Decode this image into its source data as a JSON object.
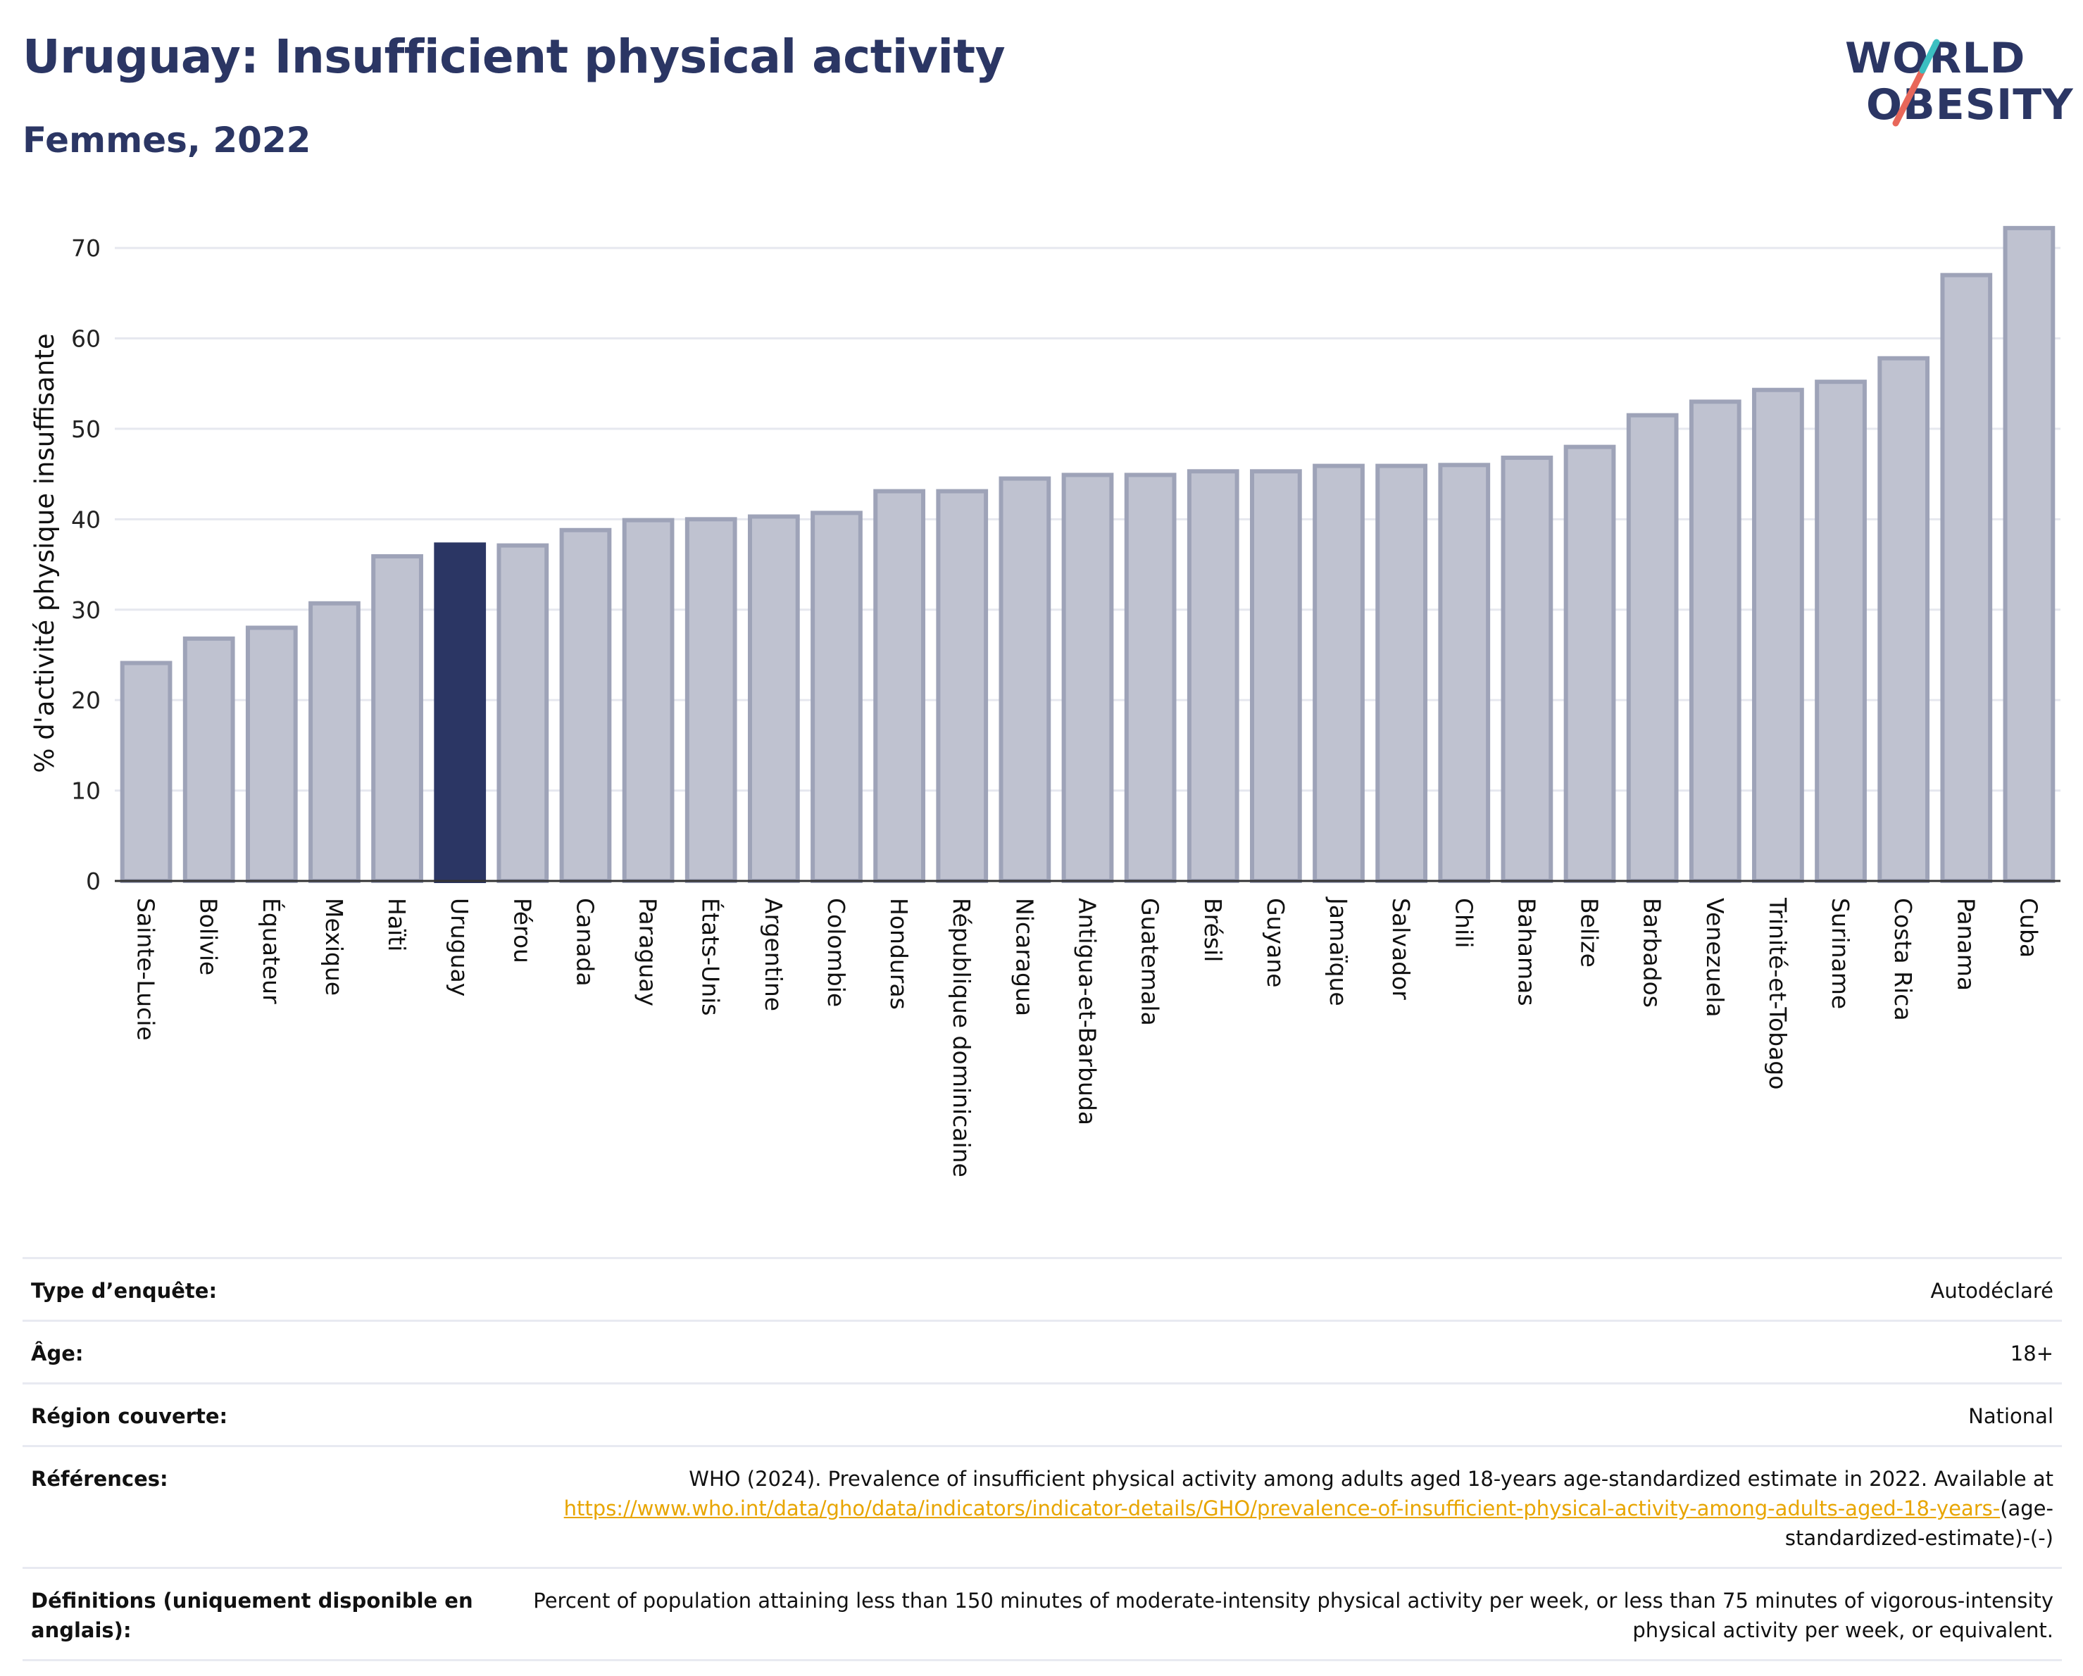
{
  "header": {
    "title": "Uruguay: Insufficient physical activity",
    "subtitle": "Femmes, 2022"
  },
  "logo": {
    "line1": "WORLD",
    "line2": "OBESITY"
  },
  "colors": {
    "bar": "#bfc2d0",
    "bar_stroke": "#9ea3b8",
    "highlight": "#2b3664",
    "grid": "#e6e8ef",
    "axis": "#333333",
    "logo_teal": "#3bbfc1",
    "logo_red": "#e8675a"
  },
  "chart_data": {
    "type": "bar",
    "ylabel": "% d'activité physique insuffisante",
    "ylim": [
      0,
      72.5
    ],
    "yticks": [
      0,
      10,
      20,
      30,
      40,
      50,
      60,
      70
    ],
    "grid": true,
    "highlight": "Uruguay",
    "categories": [
      "Sainte-Lucie",
      "Bolivie",
      "Équateur",
      "Mexique",
      "Haïti",
      "Uruguay",
      "Pérou",
      "Canada",
      "Paraguay",
      "États-Unis",
      "Argentine",
      "Colombie",
      "Honduras",
      "République dominicaine",
      "Nicaragua",
      "Antigua-et-Barbuda",
      "Guatemala",
      "Brésil",
      "Guyane",
      "Jamaïque",
      "Salvador",
      "Chili",
      "Bahamas",
      "Belize",
      "Barbados",
      "Venezuela",
      "Trinité-et-Tobago",
      "Suriname",
      "Costa Rica",
      "Panama",
      "Cuba"
    ],
    "values": [
      24.1,
      26.8,
      28.0,
      30.7,
      35.9,
      37.2,
      37.1,
      38.8,
      39.9,
      40.0,
      40.3,
      40.7,
      43.1,
      43.1,
      44.5,
      44.9,
      44.9,
      45.3,
      45.3,
      45.9,
      45.9,
      46.0,
      46.8,
      48.0,
      51.5,
      53.0,
      54.3,
      55.2,
      57.8,
      67.0,
      72.2
    ]
  },
  "details": [
    {
      "label": "Type d’enquête:",
      "value": "Autodéclaré"
    },
    {
      "label": "Âge:",
      "value": "18+"
    },
    {
      "label": "Région couverte:",
      "value": "National"
    },
    {
      "label": "Références:",
      "value_pre": "WHO (2024). Prevalence of insufficient physical activity among adults aged 18-years age-standardized estimate in 2022. Available at ",
      "link": "https://www.who.int/data/gho/data/indicators/indicator-details/GHO/prevalence-of-insufficient-physical-activity-among-adults-aged-18-years-",
      "value_post": "(age-standardized-estimate)-(-)"
    },
    {
      "label": "Définitions (uniquement disponible en anglais):",
      "value": "Percent of population attaining less than 150 minutes of moderate-intensity physical activity per week, or less than 75 minutes of vigorous-intensity physical activity per week, or equivalent."
    }
  ]
}
